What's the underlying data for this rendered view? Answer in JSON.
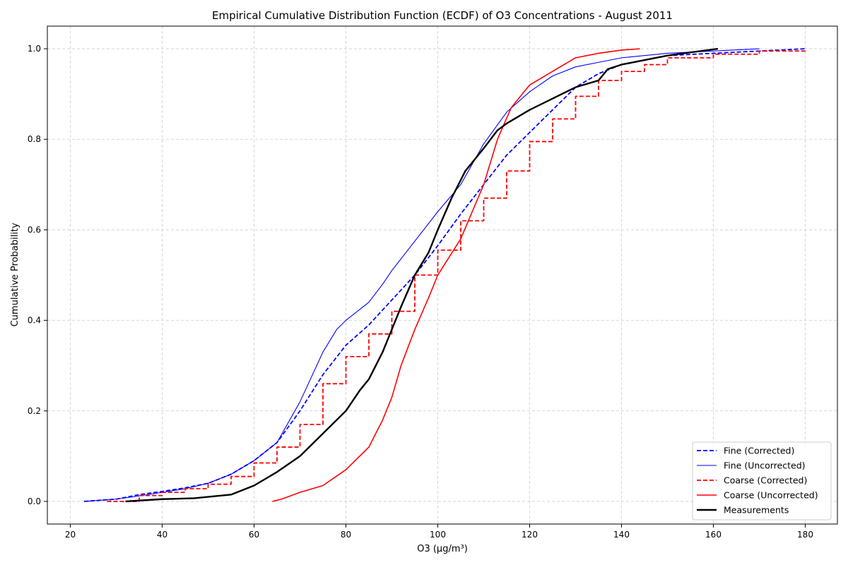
{
  "chart_data": {
    "type": "line",
    "title": "Empirical Cumulative Distribution Function (ECDF) of O3 Concentrations - August 2011",
    "xlabel": "O3 (µg/m³)",
    "ylabel": "Cumulative Probability",
    "xlim": [
      15,
      187
    ],
    "ylim": [
      -0.05,
      1.05
    ],
    "xticks": [
      "20",
      "40",
      "60",
      "80",
      "100",
      "120",
      "140",
      "160",
      "180"
    ],
    "yticks": [
      "0.0",
      "0.2",
      "0.4",
      "0.6",
      "0.8",
      "1.0"
    ],
    "grid": true,
    "legend_position": "bottom-right",
    "series": [
      {
        "name": "Fine (Corrected)",
        "color": "#0000ff",
        "style": "dashed",
        "points": [
          [
            23,
            0.0
          ],
          [
            30,
            0.005
          ],
          [
            35,
            0.015
          ],
          [
            40,
            0.022
          ],
          [
            45,
            0.03
          ],
          [
            50,
            0.04
          ],
          [
            55,
            0.06
          ],
          [
            60,
            0.09
          ],
          [
            65,
            0.13
          ],
          [
            70,
            0.2
          ],
          [
            75,
            0.28
          ],
          [
            80,
            0.345
          ],
          [
            85,
            0.39
          ],
          [
            90,
            0.445
          ],
          [
            95,
            0.5
          ],
          [
            100,
            0.565
          ],
          [
            105,
            0.635
          ],
          [
            110,
            0.7
          ],
          [
            115,
            0.765
          ],
          [
            120,
            0.815
          ],
          [
            125,
            0.865
          ],
          [
            130,
            0.915
          ],
          [
            135,
            0.945
          ],
          [
            140,
            0.965
          ],
          [
            145,
            0.975
          ],
          [
            150,
            0.985
          ],
          [
            160,
            0.99
          ],
          [
            170,
            0.995
          ],
          [
            180,
            1.0
          ]
        ]
      },
      {
        "name": "Fine (Uncorrected)",
        "color": "#0000ff",
        "style": "solid-thin",
        "points": [
          [
            23,
            0.0
          ],
          [
            30,
            0.005
          ],
          [
            35,
            0.012
          ],
          [
            40,
            0.02
          ],
          [
            45,
            0.028
          ],
          [
            50,
            0.04
          ],
          [
            55,
            0.06
          ],
          [
            60,
            0.09
          ],
          [
            65,
            0.13
          ],
          [
            70,
            0.22
          ],
          [
            75,
            0.33
          ],
          [
            78,
            0.38
          ],
          [
            80,
            0.4
          ],
          [
            85,
            0.44
          ],
          [
            88,
            0.48
          ],
          [
            90,
            0.51
          ],
          [
            95,
            0.575
          ],
          [
            100,
            0.64
          ],
          [
            105,
            0.7
          ],
          [
            110,
            0.79
          ],
          [
            115,
            0.86
          ],
          [
            120,
            0.905
          ],
          [
            125,
            0.94
          ],
          [
            130,
            0.96
          ],
          [
            135,
            0.97
          ],
          [
            140,
            0.98
          ],
          [
            150,
            0.99
          ],
          [
            160,
            0.995
          ],
          [
            170,
            1.0
          ]
        ]
      },
      {
        "name": "Coarse (Corrected)",
        "color": "#ff0000",
        "style": "dashed-step",
        "points": [
          [
            28,
            0.0
          ],
          [
            35,
            0.013
          ],
          [
            40,
            0.02
          ],
          [
            45,
            0.028
          ],
          [
            50,
            0.038
          ],
          [
            55,
            0.055
          ],
          [
            60,
            0.085
          ],
          [
            65,
            0.12
          ],
          [
            70,
            0.17
          ],
          [
            75,
            0.26
          ],
          [
            80,
            0.32
          ],
          [
            85,
            0.37
          ],
          [
            90,
            0.42
          ],
          [
            95,
            0.5
          ],
          [
            100,
            0.555
          ],
          [
            105,
            0.62
          ],
          [
            110,
            0.67
          ],
          [
            115,
            0.73
          ],
          [
            120,
            0.795
          ],
          [
            125,
            0.845
          ],
          [
            130,
            0.895
          ],
          [
            135,
            0.93
          ],
          [
            140,
            0.95
          ],
          [
            145,
            0.965
          ],
          [
            150,
            0.98
          ],
          [
            160,
            0.988
          ],
          [
            170,
            0.995
          ],
          [
            180,
            1.0
          ]
        ]
      },
      {
        "name": "Coarse (Uncorrected)",
        "color": "#ff0000",
        "style": "solid",
        "points": [
          [
            64,
            0.0
          ],
          [
            66,
            0.005
          ],
          [
            70,
            0.02
          ],
          [
            75,
            0.035
          ],
          [
            80,
            0.07
          ],
          [
            85,
            0.12
          ],
          [
            88,
            0.18
          ],
          [
            90,
            0.23
          ],
          [
            92,
            0.3
          ],
          [
            95,
            0.38
          ],
          [
            98,
            0.45
          ],
          [
            100,
            0.5
          ],
          [
            105,
            0.58
          ],
          [
            110,
            0.7
          ],
          [
            113,
            0.8
          ],
          [
            116,
            0.87
          ],
          [
            120,
            0.92
          ],
          [
            125,
            0.95
          ],
          [
            130,
            0.98
          ],
          [
            135,
            0.99
          ],
          [
            140,
            0.997
          ],
          [
            144,
            1.0
          ]
        ]
      },
      {
        "name": "Measurements",
        "color": "#000000",
        "style": "solid-thick",
        "points": [
          [
            32,
            0.0
          ],
          [
            40,
            0.005
          ],
          [
            47,
            0.007
          ],
          [
            55,
            0.015
          ],
          [
            60,
            0.035
          ],
          [
            65,
            0.065
          ],
          [
            70,
            0.1
          ],
          [
            75,
            0.15
          ],
          [
            80,
            0.2
          ],
          [
            83,
            0.245
          ],
          [
            85,
            0.27
          ],
          [
            88,
            0.33
          ],
          [
            90,
            0.38
          ],
          [
            92,
            0.43
          ],
          [
            95,
            0.5
          ],
          [
            98,
            0.55
          ],
          [
            100,
            0.6
          ],
          [
            103,
            0.67
          ],
          [
            106,
            0.73
          ],
          [
            110,
            0.78
          ],
          [
            113,
            0.82
          ],
          [
            115,
            0.835
          ],
          [
            120,
            0.865
          ],
          [
            125,
            0.89
          ],
          [
            130,
            0.915
          ],
          [
            135,
            0.93
          ],
          [
            137,
            0.955
          ],
          [
            140,
            0.965
          ],
          [
            145,
            0.975
          ],
          [
            150,
            0.985
          ],
          [
            155,
            0.992
          ],
          [
            161,
            1.0
          ]
        ]
      }
    ]
  }
}
